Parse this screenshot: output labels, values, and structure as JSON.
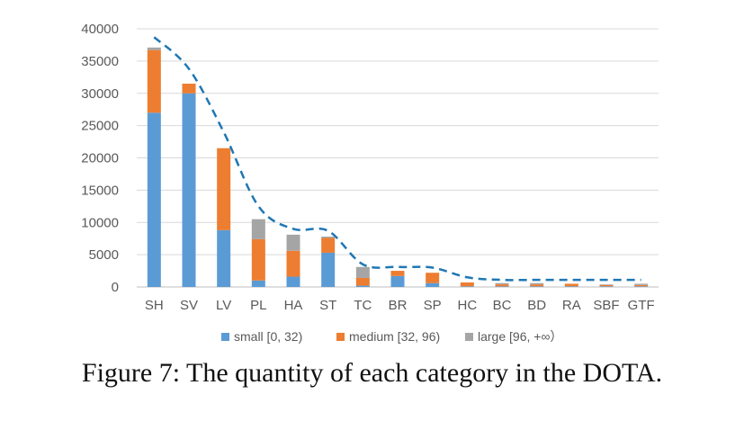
{
  "chart_data": {
    "type": "bar",
    "stacked": true,
    "title": "",
    "xlabel": "",
    "ylabel": "",
    "ylim": [
      0,
      40000
    ],
    "yticks": [
      0,
      5000,
      10000,
      15000,
      20000,
      25000,
      30000,
      35000,
      40000
    ],
    "grid": true,
    "legend_position": "bottom",
    "categories": [
      "SH",
      "SV",
      "LV",
      "PL",
      "HA",
      "ST",
      "TC",
      "BR",
      "SP",
      "HC",
      "BC",
      "BD",
      "RA",
      "SBF",
      "GTF"
    ],
    "series": [
      {
        "name": "small [0, 32)",
        "color": "#5B9BD5",
        "values": [
          27000,
          30000,
          8800,
          1000,
          1600,
          5300,
          200,
          1700,
          600,
          100,
          100,
          100,
          100,
          100,
          100
        ]
      },
      {
        "name": "medium [32, 96)",
        "color": "#ED7D31",
        "values": [
          9700,
          1500,
          12700,
          6400,
          4000,
          2300,
          1200,
          800,
          1600,
          600,
          300,
          300,
          400,
          200,
          200
        ]
      },
      {
        "name": "large [96, +∞）",
        "color": "#A5A5A5",
        "values": [
          400,
          0,
          0,
          3100,
          2500,
          200,
          1700,
          0,
          0,
          0,
          200,
          200,
          0,
          100,
          200
        ]
      }
    ],
    "trend_line": {
      "style": "dashed",
      "color": "#1F77B4",
      "values": [
        38700,
        33800,
        24000,
        12500,
        9000,
        8700,
        3500,
        3100,
        3000,
        1500,
        1100,
        1100,
        1100,
        1100,
        1100
      ]
    }
  },
  "caption": "Figure 7: The quantity of each category in the DOTA."
}
